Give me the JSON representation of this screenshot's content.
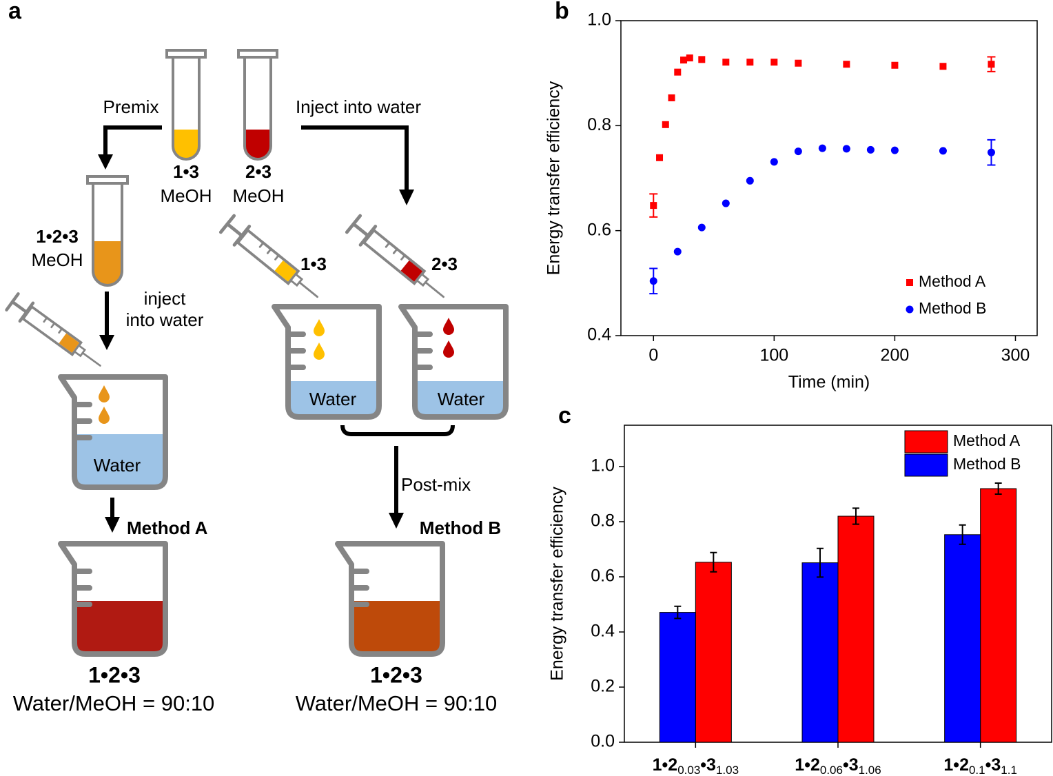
{
  "diagram": {
    "label": "a",
    "premix": "Premix",
    "inject_top": "Inject into water",
    "tube1": {
      "name": "1•3",
      "solvent": "MeOH"
    },
    "tube2": {
      "name": "2•3",
      "solvent": "MeOH"
    },
    "tube3": {
      "name": "1•2•3",
      "solvent": "MeOH"
    },
    "inject": [
      "inject",
      "into water"
    ],
    "syringe1": "1•3",
    "syringe2": "2•3",
    "water": [
      "Water",
      "Water",
      "Water"
    ],
    "post_mix": "Post-mix",
    "method_a": "Method A",
    "method_b": "Method B",
    "result_a": {
      "name": "1•2•3",
      "ratio": "Water/MeOH = 90:10"
    },
    "result_b": {
      "name": "1•2•3",
      "ratio": "Water/MeOH = 90:10"
    }
  },
  "chart_data": [
    {
      "type": "scatter",
      "label": "b",
      "xlabel": "Time (min)",
      "ylabel": "Energy transfer efficiency",
      "xlim": [
        -27,
        318
      ],
      "ylim": [
        0.4,
        1.0
      ],
      "xticks": [
        0,
        100,
        200,
        300
      ],
      "yticks": [
        0.4,
        0.6,
        0.8,
        {
          "value": 1.0,
          "label": "1.0"
        }
      ],
      "legend": "lower right",
      "series": [
        {
          "name": "Method A",
          "color": "#ff0000",
          "marker": "square",
          "x": [
            0,
            5,
            10,
            15,
            20,
            25,
            30,
            40,
            60,
            80,
            100,
            120,
            160,
            200,
            240,
            280
          ],
          "values": [
            0.648,
            0.739,
            0.802,
            0.853,
            0.902,
            0.925,
            0.929,
            0.926,
            0.921,
            0.921,
            0.921,
            0.919,
            0.917,
            0.915,
            0.913,
            0.917
          ],
          "errors": [
            0.022,
            null,
            null,
            null,
            null,
            null,
            null,
            null,
            null,
            null,
            null,
            null,
            null,
            null,
            null,
            0.014
          ]
        },
        {
          "name": "Method B",
          "color": "#0000ff",
          "marker": "circle",
          "x": [
            0,
            20,
            40,
            60,
            80,
            100,
            120,
            140,
            160,
            180,
            200,
            240,
            280
          ],
          "values": [
            0.504,
            0.56,
            0.606,
            0.652,
            0.695,
            0.731,
            0.751,
            0.757,
            0.756,
            0.754,
            0.753,
            0.752,
            0.749
          ],
          "errors": [
            0.024,
            null,
            null,
            null,
            null,
            null,
            null,
            null,
            null,
            null,
            null,
            null,
            0.024
          ]
        }
      ]
    },
    {
      "type": "bar",
      "label": "c",
      "ylabel": "Energy transfer efficiency",
      "categories": [
        [
          "1•2",
          "0.03",
          "•3",
          "1.03"
        ],
        [
          "1•2",
          "0.06",
          "•3",
          "1.06"
        ],
        [
          "1•2",
          "0.1",
          "•3",
          "1.1"
        ]
      ],
      "ylim": [
        0,
        1.15
      ],
      "yticks": [
        {
          "value": 0,
          "label": "0.0"
        },
        0.2,
        0.4,
        0.6,
        0.8,
        {
          "value": 1.0,
          "label": "1.0"
        }
      ],
      "legend": "upper right",
      "series": [
        {
          "name": "Method A",
          "color": "#ff0000",
          "values": [
            0.653,
            0.82,
            0.92
          ],
          "errors": [
            0.035,
            0.029,
            0.02
          ]
        },
        {
          "name": "Method B",
          "color": "#0000ff",
          "values": [
            0.471,
            0.651,
            0.753
          ],
          "errors": [
            0.022,
            0.052,
            0.035
          ]
        }
      ]
    }
  ]
}
